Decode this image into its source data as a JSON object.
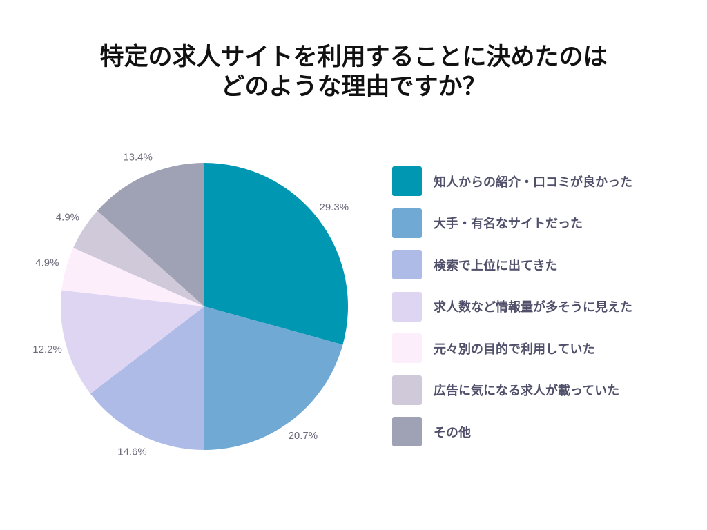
{
  "title": {
    "line1": "特定の求人サイトを利用することに決めたのは",
    "line2": "どのような理由ですか？"
  },
  "chart_data": {
    "type": "pie",
    "categories": [
      "知人からの紹介・口コミが良かった",
      "大手・有名なサイトだった",
      "検索で上位に出てきた",
      "求人数など情報量が多そうに見えた",
      "元々別の目的で利用していた",
      "広告に気になる求人が載っていた",
      "その他"
    ],
    "values": [
      29.3,
      20.7,
      14.6,
      12.2,
      4.9,
      4.9,
      13.4
    ],
    "labels": [
      "29.3%",
      "20.7%",
      "14.6%",
      "12.2%",
      "4.9%",
      "4.9%",
      "13.4%"
    ],
    "colors": [
      "#0097b2",
      "#70a9d3",
      "#adbbe6",
      "#ddd5f2",
      "#fdeefc",
      "#d0c9da",
      "#9fa2b4"
    ],
    "start": "12 o'clock",
    "direction": "clockwise",
    "legend": "right"
  }
}
